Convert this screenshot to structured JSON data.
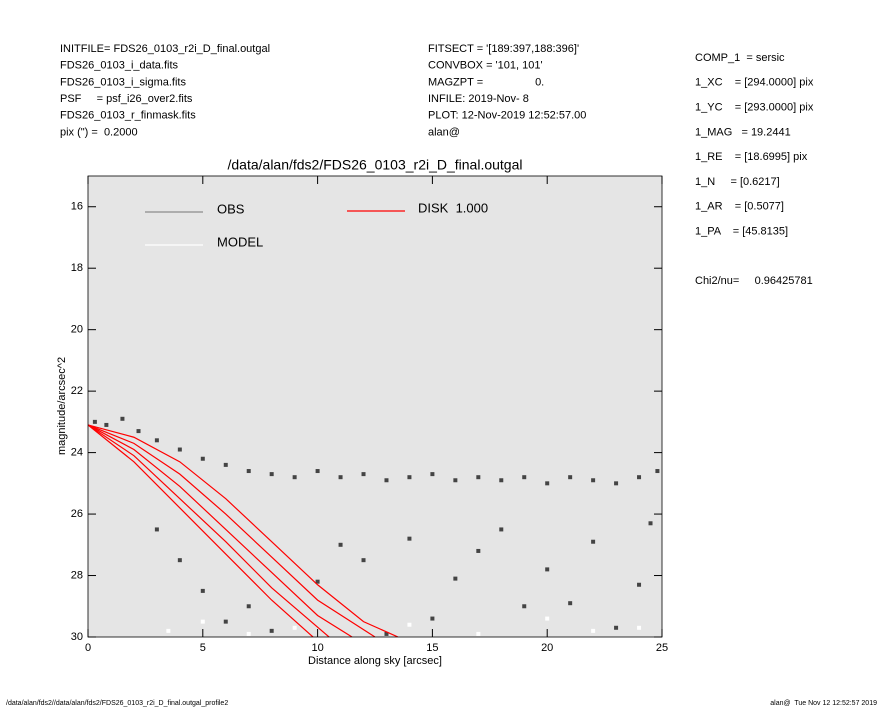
{
  "header": {
    "left": [
      "INITFILE= FDS26_0103_r2i_D_final.outgal",
      "FDS26_0103_i_data.fits",
      "FDS26_0103_i_sigma.fits",
      "PSF     = psf_i26_over2.fits",
      "FDS26_0103_r_finmask.fits",
      "pix (\") =  0.2000"
    ],
    "middle": [
      "FITSECT = '[189:397,188:396]'",
      "CONVBOX = '101, 101'",
      "MAGZPT =                 0.",
      "INFILE: 2019-Nov- 8",
      "PLOT: 12-Nov-2019 12:52:57.00",
      "alan@"
    ],
    "right": [
      "COMP_1  = sersic",
      "1_XC    = [294.0000] pix",
      "1_YC    = [293.0000] pix",
      "1_MAG   = 19.2441",
      "1_RE    = [18.6995] pix",
      "1_N     = [0.6217]",
      "1_AR    = [0.5077]",
      "1_PA    = [45.8135]"
    ],
    "chi2": "Chi2/nu=     0.96425781"
  },
  "footer": {
    "left": "/data/alan/fds2//data/alan/fds2/FDS26_0103_r2i_D_final.outgal_profile2",
    "right": "alan@  Tue Nov 12 12:52:57 2019"
  },
  "chart_data": {
    "type": "scatter",
    "title": "/data/alan/fds2/FDS26_0103_r2i_D_final.outgal",
    "x_label": "Distance along sky [arcsec]",
    "y_label": "magnitude/arcsec^2",
    "xlim": [
      0,
      25
    ],
    "xticks": [
      0,
      5,
      10,
      15,
      20,
      25
    ],
    "ylim": [
      30,
      15
    ],
    "yticks": [
      16,
      18,
      20,
      22,
      24,
      26,
      28,
      30
    ],
    "background": "#e5e5e5",
    "series": [
      {
        "name": "OBS",
        "color": "#8c8c8c",
        "point_color": "#444444",
        "x": [
          0.3,
          0.8,
          1.5,
          2.2,
          3,
          4,
          5,
          6,
          7,
          8,
          9,
          10,
          11,
          12,
          13,
          14,
          15,
          16,
          17,
          18,
          19,
          20,
          21,
          22,
          23,
          24,
          24.8,
          3,
          4,
          5,
          6,
          7,
          8,
          10,
          12,
          14,
          15,
          16,
          18,
          19,
          20,
          21,
          22,
          23,
          24,
          24.5,
          13,
          11,
          17
        ],
        "values": [
          23.0,
          23.1,
          22.9,
          23.3,
          23.6,
          23.9,
          24.2,
          24.4,
          24.6,
          24.7,
          24.8,
          24.6,
          24.8,
          24.7,
          24.9,
          24.8,
          24.7,
          24.9,
          24.8,
          24.9,
          24.8,
          25.0,
          24.8,
          24.9,
          25.0,
          24.8,
          24.6,
          26.5,
          27.5,
          28.5,
          29.5,
          29.0,
          29.8,
          28.2,
          27.5,
          26.8,
          29.4,
          28.1,
          26.5,
          29.0,
          27.8,
          28.9,
          26.9,
          29.7,
          28.3,
          26.3,
          29.9,
          27.0,
          27.2
        ]
      },
      {
        "name": "MODEL",
        "color": "#ffffff",
        "point_color": "#ffffff",
        "x": [
          3.5,
          5,
          7,
          9,
          14,
          17,
          20,
          22,
          24
        ],
        "values": [
          29.8,
          29.5,
          29.9,
          29.7,
          29.6,
          29.9,
          29.4,
          29.8,
          29.7
        ]
      },
      {
        "name": "DISK  1.000",
        "color": "#ff0000",
        "curves": [
          {
            "x": [
              0,
              2,
              4,
              6,
              8,
              10,
              12,
              13.5
            ],
            "values": [
              23.1,
              23.5,
              24.3,
              25.5,
              26.9,
              28.3,
              29.5,
              30
            ]
          },
          {
            "x": [
              0,
              2,
              4,
              6,
              8,
              10,
              12.5
            ],
            "values": [
              23.1,
              23.7,
              24.7,
              26.0,
              27.4,
              28.8,
              30
            ]
          },
          {
            "x": [
              0,
              2,
              4,
              6,
              8,
              10,
              11.5
            ],
            "values": [
              23.1,
              23.9,
              25.1,
              26.5,
              27.9,
              29.3,
              30
            ]
          },
          {
            "x": [
              0,
              2,
              4,
              6,
              8,
              10.5
            ],
            "values": [
              23.1,
              24.1,
              25.5,
              26.9,
              28.4,
              30
            ]
          },
          {
            "x": [
              0,
              2,
              4,
              6,
              8,
              9.8
            ],
            "values": [
              23.1,
              24.3,
              25.8,
              27.3,
              28.8,
              30
            ]
          }
        ]
      }
    ]
  }
}
